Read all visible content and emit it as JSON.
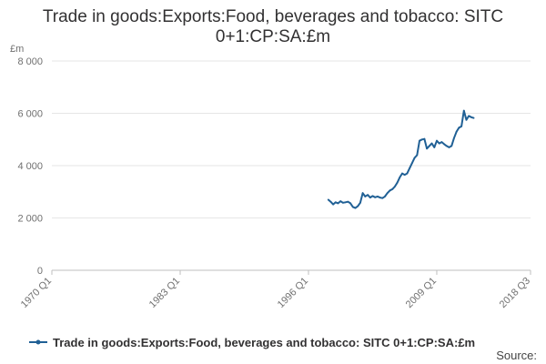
{
  "chart_data": {
    "type": "line",
    "title_line1": "Trade in goods:Exports:Food, beverages and tobacco: SITC",
    "title_line2": "0+1:CP:SA:£m",
    "ylabel": "£m",
    "ylim": [
      0,
      8000
    ],
    "y_ticks": [
      0,
      2000,
      4000,
      6000,
      8000
    ],
    "y_tick_labels": [
      "0",
      "2 000",
      "4 000",
      "6 000",
      "8 000"
    ],
    "x_ticks": [
      "1970 Q1",
      "1983 Q1",
      "1996 Q1",
      "2009 Q1",
      "2018 Q3"
    ],
    "x_range": [
      "1970 Q1",
      "2018 Q3"
    ],
    "grid": true,
    "legend_position": "bottom",
    "series": [
      {
        "name": "Trade in goods:Exports:Food, beverages and tobacco: SITC 0+1:CP:SA:£m",
        "color": "#206095",
        "points": [
          [
            "1998 Q1",
            2700
          ],
          [
            "1998 Q2",
            2620
          ],
          [
            "1998 Q3",
            2520
          ],
          [
            "1998 Q4",
            2600
          ],
          [
            "1999 Q1",
            2560
          ],
          [
            "1999 Q2",
            2640
          ],
          [
            "1999 Q3",
            2580
          ],
          [
            "1999 Q4",
            2600
          ],
          [
            "2000 Q1",
            2620
          ],
          [
            "2000 Q2",
            2560
          ],
          [
            "2000 Q3",
            2420
          ],
          [
            "2000 Q4",
            2380
          ],
          [
            "2001 Q1",
            2450
          ],
          [
            "2001 Q2",
            2580
          ],
          [
            "2001 Q3",
            2950
          ],
          [
            "2001 Q4",
            2820
          ],
          [
            "2002 Q1",
            2880
          ],
          [
            "2002 Q2",
            2780
          ],
          [
            "2002 Q3",
            2840
          ],
          [
            "2002 Q4",
            2790
          ],
          [
            "2003 Q1",
            2820
          ],
          [
            "2003 Q2",
            2780
          ],
          [
            "2003 Q3",
            2760
          ],
          [
            "2003 Q4",
            2820
          ],
          [
            "2004 Q1",
            2950
          ],
          [
            "2004 Q2",
            3050
          ],
          [
            "2004 Q3",
            3100
          ],
          [
            "2004 Q4",
            3200
          ],
          [
            "2005 Q1",
            3350
          ],
          [
            "2005 Q2",
            3550
          ],
          [
            "2005 Q3",
            3700
          ],
          [
            "2005 Q4",
            3650
          ],
          [
            "2006 Q1",
            3700
          ],
          [
            "2006 Q2",
            3900
          ],
          [
            "2006 Q3",
            4100
          ],
          [
            "2006 Q4",
            4300
          ],
          [
            "2007 Q1",
            4400
          ],
          [
            "2007 Q2",
            4950
          ],
          [
            "2007 Q3",
            5000
          ],
          [
            "2007 Q4",
            5020
          ],
          [
            "2008 Q1",
            4650
          ],
          [
            "2008 Q2",
            4750
          ],
          [
            "2008 Q3",
            4850
          ],
          [
            "2008 Q4",
            4700
          ],
          [
            "2009 Q1",
            4950
          ],
          [
            "2009 Q2",
            4850
          ],
          [
            "2009 Q3",
            4900
          ],
          [
            "2009 Q4",
            4820
          ],
          [
            "2010 Q1",
            4750
          ],
          [
            "2010 Q2",
            4700
          ],
          [
            "2010 Q3",
            4750
          ],
          [
            "2010 Q4",
            5050
          ],
          [
            "2011 Q1",
            5300
          ],
          [
            "2011 Q2",
            5450
          ],
          [
            "2011 Q3",
            5500
          ],
          [
            "2011 Q4",
            6100
          ],
          [
            "2012 Q1",
            5750
          ],
          [
            "2012 Q2",
            5900
          ],
          [
            "2012 Q3",
            5850
          ],
          [
            "2012 Q4",
            5820
          ]
        ]
      }
    ],
    "source_label": "Source:"
  }
}
